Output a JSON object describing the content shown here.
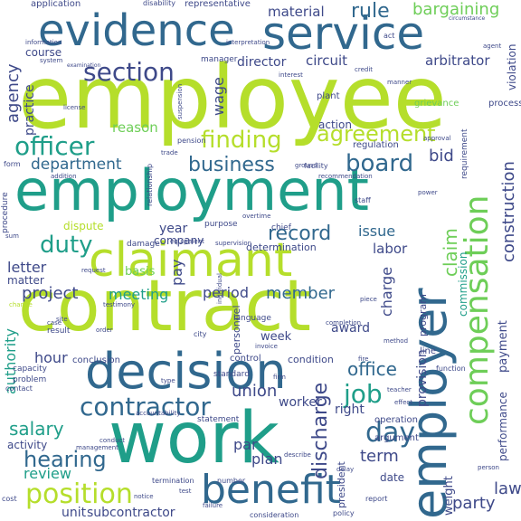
{
  "words": [
    {
      "text": "employee",
      "color": "#b5de2b"
    },
    {
      "text": "employment",
      "color": "#1f9e89"
    },
    {
      "text": "contract",
      "color": "#b5de2b"
    },
    {
      "text": "work",
      "color": "#1f9e89"
    },
    {
      "text": "decision",
      "color": "#31688e"
    },
    {
      "text": "employer",
      "color": "#31688e"
    },
    {
      "text": "claimant",
      "color": "#b5de2b"
    },
    {
      "text": "benefit",
      "color": "#31688e"
    },
    {
      "text": "evidence",
      "color": "#31688e"
    },
    {
      "text": "service",
      "color": "#31688e"
    },
    {
      "text": "compensation",
      "color": "#6ece58"
    },
    {
      "text": "contractor",
      "color": "#31688e"
    },
    {
      "text": "position",
      "color": "#b5de2b"
    },
    {
      "text": "officer",
      "color": "#1f9e89"
    },
    {
      "text": "section",
      "color": "#3e4989"
    },
    {
      "text": "finding",
      "color": "#b5de2b"
    },
    {
      "text": "agreement",
      "color": "#b5de2b"
    },
    {
      "text": "board",
      "color": "#31688e"
    },
    {
      "text": "business",
      "color": "#31688e"
    },
    {
      "text": "duty",
      "color": "#1f9e89"
    },
    {
      "text": "record",
      "color": "#31688e"
    },
    {
      "text": "hearing",
      "color": "#31688e"
    },
    {
      "text": "day",
      "color": "#31688e"
    },
    {
      "text": "job",
      "color": "#1f9e89"
    },
    {
      "text": "project",
      "color": "#3e4989"
    },
    {
      "text": "discharge",
      "color": "#3e4989"
    },
    {
      "text": "salary",
      "color": "#1f9e89"
    },
    {
      "text": "construction",
      "color": "#3e4989"
    },
    {
      "text": "agency",
      "color": "#3e4989"
    },
    {
      "text": "rule",
      "color": "#31688e"
    },
    {
      "text": "bargaining",
      "color": "#6ece58"
    },
    {
      "text": "department",
      "color": "#31688e"
    },
    {
      "text": "meeting",
      "color": "#1f9e89"
    },
    {
      "text": "member",
      "color": "#31688e"
    },
    {
      "text": "union",
      "color": "#3e4989"
    },
    {
      "text": "issue",
      "color": "#31688e"
    },
    {
      "text": "labor",
      "color": "#3e4989"
    },
    {
      "text": "period",
      "color": "#3e4989"
    },
    {
      "text": "letter",
      "color": "#3e4989"
    },
    {
      "text": "office",
      "color": "#31688e"
    },
    {
      "text": "review",
      "color": "#1f9e89"
    },
    {
      "text": "term",
      "color": "#3e4989"
    },
    {
      "text": "party",
      "color": "#3e4989"
    },
    {
      "text": "law",
      "color": "#3e4989"
    },
    {
      "text": "plan",
      "color": "#3e4989"
    },
    {
      "text": "par",
      "color": "#3e4989"
    },
    {
      "text": "unit",
      "color": "#3e4989"
    },
    {
      "text": "subcontractor",
      "color": "#3e4989"
    },
    {
      "text": "reason",
      "color": "#6ece58"
    },
    {
      "text": "wage",
      "color": "#3e4989"
    },
    {
      "text": "director",
      "color": "#3e4989"
    },
    {
      "text": "circuit",
      "color": "#3e4989"
    },
    {
      "text": "arbitrator",
      "color": "#3e4989"
    },
    {
      "text": "material",
      "color": "#3e4989"
    },
    {
      "text": "course",
      "color": "#3e4989"
    },
    {
      "text": "practice",
      "color": "#3e4989"
    },
    {
      "text": "bid",
      "color": "#3e4989"
    },
    {
      "text": "year",
      "color": "#3e4989"
    },
    {
      "text": "company",
      "color": "#3e4989"
    },
    {
      "text": "authority",
      "color": "#1f9e89"
    },
    {
      "text": "hour",
      "color": "#3e4989"
    },
    {
      "text": "charge",
      "color": "#3e4989"
    },
    {
      "text": "claim",
      "color": "#6ece58"
    },
    {
      "text": "pay",
      "color": "#3e4989"
    },
    {
      "text": "basis",
      "color": "#6ece58"
    },
    {
      "text": "award",
      "color": "#3e4989"
    },
    {
      "text": "week",
      "color": "#3e4989"
    },
    {
      "text": "right",
      "color": "#3e4989"
    },
    {
      "text": "provision",
      "color": "#3e4989"
    },
    {
      "text": "worker",
      "color": "#3e4989"
    },
    {
      "text": "date",
      "color": "#3e4989"
    },
    {
      "text": "weight",
      "color": "#3e4989"
    },
    {
      "text": "activity",
      "color": "#3e4989"
    },
    {
      "text": "matter",
      "color": "#3e4989"
    },
    {
      "text": "payment",
      "color": "#3e4989"
    },
    {
      "text": "performance",
      "color": "#3e4989"
    },
    {
      "text": "violation",
      "color": "#3e4989"
    },
    {
      "text": "dispute",
      "color": "#b5de2b"
    },
    {
      "text": "determination",
      "color": "#3e4989"
    },
    {
      "text": "personnel",
      "color": "#3e4989"
    },
    {
      "text": "commission",
      "color": "#1f9e89"
    },
    {
      "text": "conclusion",
      "color": "#3e4989"
    },
    {
      "text": "condition",
      "color": "#3e4989"
    },
    {
      "text": "control",
      "color": "#3e4989"
    },
    {
      "text": "program",
      "color": "#3e4989"
    },
    {
      "text": "operation",
      "color": "#3e4989"
    },
    {
      "text": "president",
      "color": "#3e4989"
    },
    {
      "text": "argument",
      "color": "#3e4989"
    },
    {
      "text": "statement",
      "color": "#3e4989"
    },
    {
      "text": "standard",
      "color": "#3e4989"
    },
    {
      "text": "representative",
      "color": "#3e4989"
    },
    {
      "text": "application",
      "color": "#3e4989"
    },
    {
      "text": "disability",
      "color": "#3e4989"
    },
    {
      "text": "action",
      "color": "#3e4989"
    },
    {
      "text": "plant",
      "color": "#3e4989"
    },
    {
      "text": "pension",
      "color": "#3e4989"
    },
    {
      "text": "trade",
      "color": "#3e4989"
    },
    {
      "text": "manager",
      "color": "#3e4989"
    },
    {
      "text": "process",
      "color": "#3e4989"
    },
    {
      "text": "regulation",
      "color": "#3e4989"
    },
    {
      "text": "requirement",
      "color": "#3e4989"
    },
    {
      "text": "facility",
      "color": "#3e4989"
    },
    {
      "text": "interest",
      "color": "#3e4989"
    },
    {
      "text": "license",
      "color": "#3e4989"
    },
    {
      "text": "procedure",
      "color": "#3e4989"
    },
    {
      "text": "grievance",
      "color": "#6ece58"
    },
    {
      "text": "circumstance",
      "color": "#3e4989"
    },
    {
      "text": "information",
      "color": "#3e4989"
    },
    {
      "text": "system",
      "color": "#3e4989"
    },
    {
      "text": "examination",
      "color": "#3e4989"
    },
    {
      "text": "chief",
      "color": "#3e4989"
    },
    {
      "text": "relationship",
      "color": "#3e4989"
    },
    {
      "text": "consideration",
      "color": "#3e4989"
    },
    {
      "text": "management",
      "color": "#3e4989"
    },
    {
      "text": "capacity",
      "color": "#3e4989"
    },
    {
      "text": "problem",
      "color": "#3e4989"
    },
    {
      "text": "contact",
      "color": "#3e4989"
    },
    {
      "text": "overtime",
      "color": "#3e4989"
    },
    {
      "text": "termination",
      "color": "#3e4989"
    },
    {
      "text": "number",
      "color": "#3e4989"
    },
    {
      "text": "report",
      "color": "#3e4989"
    },
    {
      "text": "policy",
      "color": "#3e4989"
    },
    {
      "text": "failure",
      "color": "#3e4989"
    },
    {
      "text": "change",
      "color": "#b5de2b"
    },
    {
      "text": "testimony",
      "color": "#3e4989"
    },
    {
      "text": "result",
      "color": "#3e4989"
    },
    {
      "text": "case",
      "color": "#3e4989"
    },
    {
      "text": "order",
      "color": "#3e4989"
    },
    {
      "text": "form",
      "color": "#3e4989"
    },
    {
      "text": "staff",
      "color": "#3e4989"
    },
    {
      "text": "credit",
      "color": "#3e4989"
    },
    {
      "text": "manner",
      "color": "#3e4989"
    },
    {
      "text": "act",
      "color": "#3e4989"
    },
    {
      "text": "purpose",
      "color": "#3e4989"
    },
    {
      "text": "equipment",
      "color": "#3e4989"
    },
    {
      "text": "individual",
      "color": "#3e4989"
    },
    {
      "text": "language",
      "color": "#3e4989"
    },
    {
      "text": "completion",
      "color": "#3e4989"
    },
    {
      "text": "method",
      "color": "#3e4989"
    },
    {
      "text": "effect",
      "color": "#3e4989"
    },
    {
      "text": "function",
      "color": "#3e4989"
    },
    {
      "text": "teacher",
      "color": "#3e4989"
    },
    {
      "text": "person",
      "color": "#3e4989"
    },
    {
      "text": "cost",
      "color": "#3e4989"
    },
    {
      "text": "test",
      "color": "#3e4989"
    },
    {
      "text": "notice",
      "color": "#3e4989"
    },
    {
      "text": "supervision",
      "color": "#3e4989"
    },
    {
      "text": "damage",
      "color": "#3e4989"
    },
    {
      "text": "request",
      "color": "#3e4989"
    },
    {
      "text": "approval",
      "color": "#3e4989"
    },
    {
      "text": "recommendation",
      "color": "#3e4989"
    },
    {
      "text": "interpretation",
      "color": "#3e4989"
    },
    {
      "text": "site",
      "color": "#3e4989"
    },
    {
      "text": "line",
      "color": "#3e4989"
    },
    {
      "text": "city",
      "color": "#3e4989"
    },
    {
      "text": "firm",
      "color": "#3e4989"
    },
    {
      "text": "delay",
      "color": "#3e4989"
    },
    {
      "text": "piece",
      "color": "#3e4989"
    },
    {
      "text": "power",
      "color": "#3e4989"
    },
    {
      "text": "agent",
      "color": "#3e4989"
    },
    {
      "text": "suspension",
      "color": "#3e4989"
    },
    {
      "text": "addition",
      "color": "#3e4989"
    },
    {
      "text": "invoice",
      "color": "#3e4989"
    },
    {
      "text": "fire",
      "color": "#3e4989"
    },
    {
      "text": "ground",
      "color": "#3e4989"
    },
    {
      "text": "type",
      "color": "#3e4989"
    },
    {
      "text": "conduct",
      "color": "#3e4989"
    },
    {
      "text": "sum",
      "color": "#3e4989"
    },
    {
      "text": "accountability",
      "color": "#3e4989"
    },
    {
      "text": "describe",
      "color": "#3e4989"
    }
  ]
}
